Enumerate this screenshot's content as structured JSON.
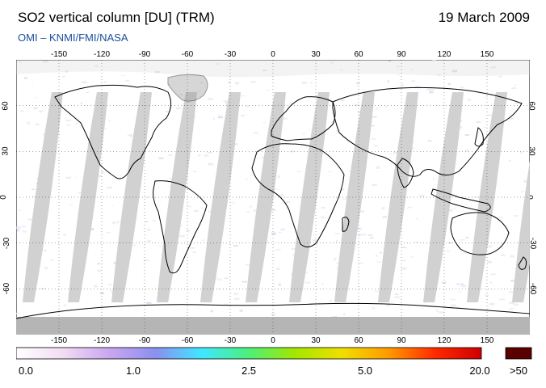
{
  "header": {
    "title": "SO2 vertical column [DU] (TRM)",
    "date": "19 March 2009",
    "credit": "OMI  –  KNMI/FMI/NASA"
  },
  "map": {
    "longitude_ticks": [
      "-150",
      "-120",
      "-90",
      "-60",
      "-30",
      "0",
      "30",
      "60",
      "90",
      "120",
      "150"
    ],
    "latitude_ticks": [
      "60",
      "30",
      "0",
      "-30",
      "-60"
    ],
    "projection": "equirectangular",
    "grid": "dotted",
    "land_color": "#ffffff",
    "coastline_color": "#000000",
    "data_gap_colors": [
      "#cfcfcf",
      "#a8a8a8"
    ],
    "polar_mask_color": "#b5b5b5"
  },
  "colorbar": {
    "labels": [
      "0.0",
      "1.0",
      "2.5",
      "5.0",
      "20.0",
      ">50"
    ],
    "colors": [
      "#ffffff",
      "#f2dcf4",
      "#c9a7f0",
      "#8b8ff0",
      "#3fe8ff",
      "#4cf07a",
      "#a4e600",
      "#f0df00",
      "#ff9a00",
      "#ff2a00",
      "#cc0000"
    ],
    "overflow_color": "#5a0000"
  }
}
